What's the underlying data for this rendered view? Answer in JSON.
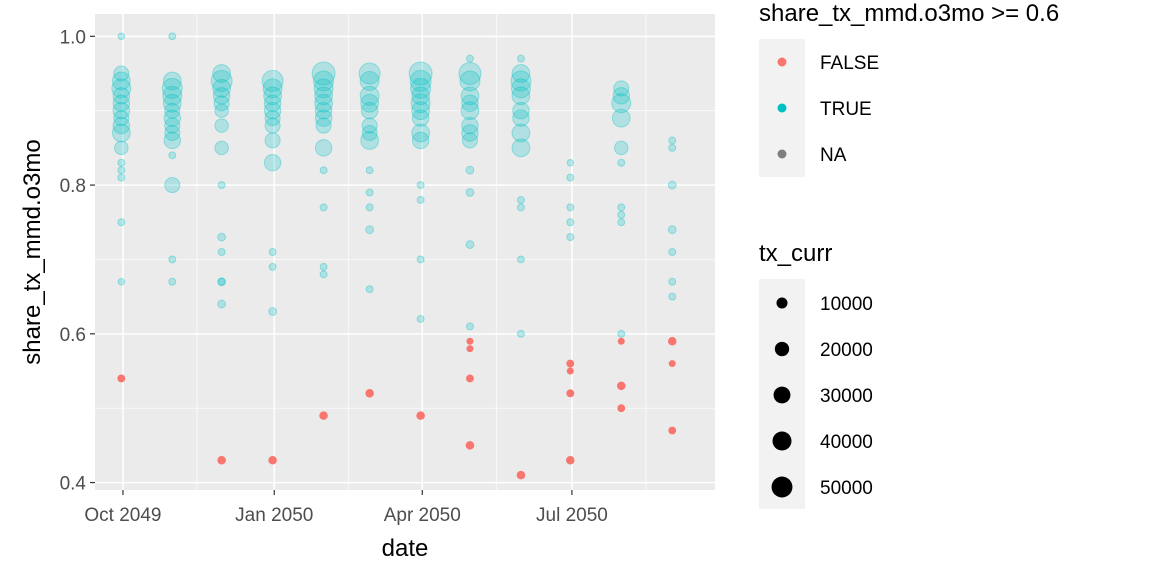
{
  "chart_data": {
    "type": "scatter",
    "xlabel": "date",
    "ylabel": "share_tx_mmd.o3mo",
    "x_ticks": [
      "Oct 2049",
      "Jan 2050",
      "Apr 2050",
      "Jul 2050"
    ],
    "y_ticks": [
      "0.4",
      "0.6",
      "0.8",
      "1.0"
    ],
    "ylim": [
      0.39,
      1.03
    ],
    "xlim": [
      "2049-09-14",
      "2050-09-26"
    ],
    "grid": true,
    "legend_placement": "right",
    "colors": {
      "FALSE": "#F8766D",
      "TRUE": "#00BFC4",
      "NA": "#7F7F7F",
      "panel": "#EBEBEB",
      "grid": "#FFFFFF"
    },
    "legend_color": {
      "title": "share_tx_mmd.o3mo >= 0.6",
      "entries": [
        {
          "label": "FALSE",
          "color": "#F8766D"
        },
        {
          "label": "TRUE",
          "color": "#00BFC4"
        },
        {
          "label": "NA",
          "color": "#7F7F7F"
        }
      ]
    },
    "legend_size": {
      "title": "tx_curr",
      "entries": [
        {
          "label": "10000",
          "value": 10000
        },
        {
          "label": "20000",
          "value": 20000
        },
        {
          "label": "30000",
          "value": 30000
        },
        {
          "label": "40000",
          "value": 40000
        },
        {
          "label": "50000",
          "value": 50000
        }
      ]
    },
    "series": [
      {
        "date": "2049-09-30",
        "points": [
          [
            0.54,
            3000
          ],
          [
            0.67,
            1500
          ],
          [
            0.75,
            2000
          ],
          [
            0.81,
            2000
          ],
          [
            0.82,
            2000
          ],
          [
            0.83,
            2000
          ],
          [
            0.85,
            15000
          ],
          [
            0.87,
            30000
          ],
          [
            0.88,
            25000
          ],
          [
            0.89,
            20000
          ],
          [
            0.9,
            25000
          ],
          [
            0.91,
            25000
          ],
          [
            0.92,
            25000
          ],
          [
            0.93,
            35000
          ],
          [
            0.94,
            30000
          ],
          [
            0.95,
            20000
          ],
          [
            1.0,
            1500
          ]
        ]
      },
      {
        "date": "2049-10-31",
        "points": [
          [
            0.67,
            2000
          ],
          [
            0.7,
            2000
          ],
          [
            0.8,
            20000
          ],
          [
            0.84,
            2000
          ],
          [
            0.86,
            25000
          ],
          [
            0.87,
            20000
          ],
          [
            0.88,
            20000
          ],
          [
            0.89,
            25000
          ],
          [
            0.9,
            20000
          ],
          [
            0.91,
            30000
          ],
          [
            0.92,
            35000
          ],
          [
            0.93,
            40000
          ],
          [
            0.94,
            30000
          ],
          [
            1.0,
            2000
          ]
        ]
      },
      {
        "date": "2049-11-30",
        "points": [
          [
            0.43,
            4000
          ],
          [
            0.64,
            3000
          ],
          [
            0.67,
            2000
          ],
          [
            0.67,
            3000
          ],
          [
            0.71,
            2000
          ],
          [
            0.73,
            3000
          ],
          [
            0.8,
            2000
          ],
          [
            0.85,
            15000
          ],
          [
            0.88,
            15000
          ],
          [
            0.9,
            15000
          ],
          [
            0.91,
            20000
          ],
          [
            0.92,
            25000
          ],
          [
            0.93,
            30000
          ],
          [
            0.94,
            45000
          ],
          [
            0.95,
            30000
          ]
        ]
      },
      {
        "date": "2049-12-31",
        "points": [
          [
            0.43,
            4000
          ],
          [
            0.63,
            3000
          ],
          [
            0.69,
            2000
          ],
          [
            0.71,
            2000
          ],
          [
            0.83,
            25000
          ],
          [
            0.86,
            20000
          ],
          [
            0.88,
            20000
          ],
          [
            0.89,
            20000
          ],
          [
            0.9,
            25000
          ],
          [
            0.91,
            25000
          ],
          [
            0.92,
            30000
          ],
          [
            0.93,
            35000
          ],
          [
            0.94,
            45000
          ]
        ]
      },
      {
        "date": "2050-01-31",
        "points": [
          [
            0.49,
            4000
          ],
          [
            0.68,
            2000
          ],
          [
            0.69,
            2000
          ],
          [
            0.77,
            2000
          ],
          [
            0.82,
            2000
          ],
          [
            0.85,
            25000
          ],
          [
            0.88,
            20000
          ],
          [
            0.89,
            25000
          ],
          [
            0.9,
            25000
          ],
          [
            0.91,
            30000
          ],
          [
            0.92,
            30000
          ],
          [
            0.93,
            35000
          ],
          [
            0.94,
            40000
          ],
          [
            0.95,
            55000
          ]
        ]
      },
      {
        "date": "2050-02-28",
        "points": [
          [
            0.52,
            4000
          ],
          [
            0.66,
            2000
          ],
          [
            0.74,
            3000
          ],
          [
            0.77,
            2000
          ],
          [
            0.79,
            2000
          ],
          [
            0.82,
            2000
          ],
          [
            0.86,
            30000
          ],
          [
            0.87,
            20000
          ],
          [
            0.88,
            20000
          ],
          [
            0.9,
            25000
          ],
          [
            0.91,
            30000
          ],
          [
            0.92,
            35000
          ],
          [
            0.94,
            35000
          ],
          [
            0.95,
            45000
          ]
        ]
      },
      {
        "date": "2050-03-31",
        "points": [
          [
            0.49,
            4000
          ],
          [
            0.62,
            2000
          ],
          [
            0.7,
            2000
          ],
          [
            0.78,
            2000
          ],
          [
            0.8,
            2000
          ],
          [
            0.86,
            25000
          ],
          [
            0.87,
            30000
          ],
          [
            0.89,
            25000
          ],
          [
            0.9,
            30000
          ],
          [
            0.91,
            35000
          ],
          [
            0.92,
            30000
          ],
          [
            0.93,
            40000
          ],
          [
            0.94,
            45000
          ],
          [
            0.95,
            55000
          ]
        ]
      },
      {
        "date": "2050-04-30",
        "points": [
          [
            0.45,
            4000
          ],
          [
            0.54,
            3000
          ],
          [
            0.58,
            2000
          ],
          [
            0.59,
            2000
          ],
          [
            0.61,
            2000
          ],
          [
            0.72,
            3000
          ],
          [
            0.79,
            3000
          ],
          [
            0.82,
            3000
          ],
          [
            0.86,
            20000
          ],
          [
            0.87,
            25000
          ],
          [
            0.88,
            25000
          ],
          [
            0.9,
            30000
          ],
          [
            0.91,
            25000
          ],
          [
            0.92,
            30000
          ],
          [
            0.94,
            40000
          ],
          [
            0.95,
            50000
          ],
          [
            0.97,
            2000
          ]
        ]
      },
      {
        "date": "2050-05-31",
        "points": [
          [
            0.41,
            4000
          ],
          [
            0.6,
            2000
          ],
          [
            0.7,
            2000
          ],
          [
            0.77,
            2000
          ],
          [
            0.78,
            2000
          ],
          [
            0.85,
            30000
          ],
          [
            0.87,
            30000
          ],
          [
            0.89,
            25000
          ],
          [
            0.9,
            25000
          ],
          [
            0.92,
            30000
          ],
          [
            0.93,
            35000
          ],
          [
            0.94,
            40000
          ],
          [
            0.95,
            30000
          ],
          [
            0.97,
            2000
          ]
        ]
      },
      {
        "date": "2050-06-30",
        "points": [
          [
            0.43,
            4000
          ],
          [
            0.52,
            3000
          ],
          [
            0.55,
            2000
          ],
          [
            0.56,
            3000
          ],
          [
            0.73,
            2000
          ],
          [
            0.75,
            2000
          ],
          [
            0.77,
            2000
          ],
          [
            0.81,
            2000
          ],
          [
            0.83,
            1500
          ]
        ]
      },
      {
        "date": "2050-07-31",
        "points": [
          [
            0.5,
            3000
          ],
          [
            0.53,
            4000
          ],
          [
            0.59,
            2000
          ],
          [
            0.6,
            2000
          ],
          [
            0.75,
            2000
          ],
          [
            0.76,
            2000
          ],
          [
            0.77,
            2000
          ],
          [
            0.83,
            2000
          ],
          [
            0.85,
            15000
          ],
          [
            0.89,
            30000
          ],
          [
            0.91,
            35000
          ],
          [
            0.92,
            25000
          ],
          [
            0.93,
            20000
          ]
        ]
      },
      {
        "date": "2050-08-31",
        "points": [
          [
            0.47,
            3000
          ],
          [
            0.56,
            2000
          ],
          [
            0.59,
            4000
          ],
          [
            0.65,
            2000
          ],
          [
            0.67,
            2000
          ],
          [
            0.71,
            2000
          ],
          [
            0.74,
            3000
          ],
          [
            0.8,
            3000
          ],
          [
            0.85,
            2000
          ],
          [
            0.86,
            2000
          ]
        ]
      }
    ]
  }
}
